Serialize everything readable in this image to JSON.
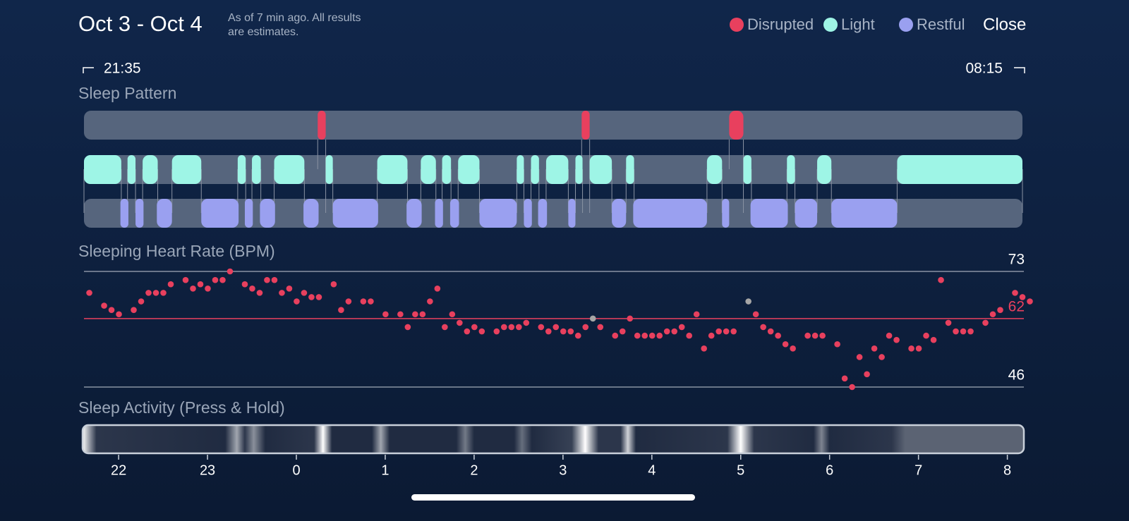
{
  "header": {
    "title": "Oct 3 - Oct 4",
    "note_line1": "As of 7 min ago. All results",
    "note_line2": "are estimates.",
    "close": "Close"
  },
  "legend": [
    {
      "name": "Disrupted",
      "color": "#e8405e"
    },
    {
      "name": "Light",
      "color": "#9ef5e6"
    },
    {
      "name": "Restful",
      "color": "#9aa0f0"
    }
  ],
  "start_time": "21:35",
  "end_time": "08:15",
  "xlim": [
    21.61,
    32.17
  ],
  "xticks": [
    22,
    23,
    {
      "value": 24,
      "label": "0"
    },
    {
      "value": 25,
      "label": "1"
    },
    {
      "value": 26,
      "label": "2"
    },
    {
      "value": 27,
      "label": "3"
    },
    {
      "value": 28,
      "label": "4"
    },
    {
      "value": 29,
      "label": "5"
    },
    {
      "value": 30,
      "label": "6"
    },
    {
      "value": 31,
      "label": "7"
    },
    {
      "value": 32,
      "label": "8"
    }
  ],
  "sleep_pattern": {
    "title": "Sleep Pattern",
    "rows": [
      {
        "name": "Disrupted",
        "segments": [
          [
            24.24,
            24.33
          ],
          [
            27.21,
            27.3
          ],
          [
            28.87,
            29.03
          ]
        ]
      },
      {
        "name": "Light",
        "segments": [
          [
            21.61,
            22.03
          ],
          [
            22.1,
            22.19
          ],
          [
            22.27,
            22.44
          ],
          [
            22.6,
            22.93
          ],
          [
            23.34,
            23.43
          ],
          [
            23.5,
            23.6
          ],
          [
            23.75,
            24.09
          ],
          [
            24.33,
            24.41
          ],
          [
            24.91,
            25.25
          ],
          [
            25.4,
            25.57
          ],
          [
            25.64,
            25.74
          ],
          [
            25.82,
            26.06
          ],
          [
            26.48,
            26.56
          ],
          [
            26.64,
            26.73
          ],
          [
            26.81,
            27.06
          ],
          [
            27.14,
            27.22
          ],
          [
            27.3,
            27.55
          ],
          [
            27.71,
            27.8
          ],
          [
            28.62,
            28.79
          ],
          [
            29.03,
            29.12
          ],
          [
            29.52,
            29.61
          ],
          [
            29.86,
            30.02
          ],
          [
            30.76,
            32.17
          ]
        ]
      },
      {
        "name": "Restful",
        "segments": [
          [
            22.02,
            22.11
          ],
          [
            22.19,
            22.28
          ],
          [
            22.43,
            22.6
          ],
          [
            22.93,
            23.35
          ],
          [
            23.42,
            23.51
          ],
          [
            23.59,
            23.76
          ],
          [
            24.08,
            24.25
          ],
          [
            24.41,
            24.92
          ],
          [
            25.24,
            25.41
          ],
          [
            25.56,
            25.65
          ],
          [
            25.73,
            25.83
          ],
          [
            26.06,
            26.48
          ],
          [
            26.56,
            26.65
          ],
          [
            26.72,
            26.82
          ],
          [
            27.06,
            27.14
          ],
          [
            27.55,
            27.71
          ],
          [
            27.79,
            28.62
          ],
          [
            28.79,
            28.87
          ],
          [
            29.11,
            29.53
          ],
          [
            29.61,
            29.86
          ],
          [
            30.02,
            30.76
          ]
        ]
      }
    ]
  },
  "heart_rate": {
    "title": "Sleeping Heart Rate (BPM)",
    "type": "scatter",
    "color": "#e8405e",
    "x_start": 21.67,
    "interval_min": 5,
    "ylim": [
      46,
      73
    ],
    "yticks": [
      46,
      73
    ],
    "average": 62,
    "average_color": "#e8405e",
    "marked_points": {
      "indices": [
        68,
        89
      ],
      "color": "#a6a6a6"
    },
    "values": [
      68,
      null,
      65,
      64,
      63,
      null,
      64,
      66,
      68,
      68,
      68,
      70,
      null,
      71,
      69,
      70,
      69,
      71,
      71,
      73,
      null,
      70,
      69,
      68,
      71,
      71,
      68,
      69,
      66,
      68,
      67,
      67,
      null,
      70,
      64,
      66,
      null,
      66,
      66,
      null,
      63,
      null,
      63,
      60,
      63,
      63,
      66,
      69,
      60,
      63,
      61,
      59,
      60,
      59,
      null,
      59,
      60,
      60,
      60,
      61,
      null,
      60,
      59,
      60,
      59,
      59,
      58,
      60,
      62,
      60,
      null,
      58,
      59,
      62,
      58,
      58,
      58,
      58,
      59,
      59,
      60,
      58,
      63,
      55,
      58,
      59,
      59,
      59,
      null,
      66,
      63,
      60,
      59,
      58,
      56,
      55,
      null,
      58,
      58,
      58,
      null,
      56,
      48,
      46,
      53,
      49,
      55,
      53,
      58,
      57,
      null,
      55,
      55,
      58,
      57,
      71,
      61,
      59,
      59,
      59,
      null,
      61,
      63,
      64,
      null,
      68,
      67,
      66
    ]
  },
  "activity": {
    "title": "Sleep Activity (Press & Hold)",
    "stops": [
      {
        "x": 21.61,
        "level": 0.9
      },
      {
        "x": 21.75,
        "level": 0.1
      },
      {
        "x": 23.2,
        "level": 0.05
      },
      {
        "x": 23.33,
        "level": 0.6
      },
      {
        "x": 23.42,
        "level": 0.1
      },
      {
        "x": 23.52,
        "level": 0.5
      },
      {
        "x": 23.65,
        "level": 0.05
      },
      {
        "x": 24.2,
        "level": 0.1
      },
      {
        "x": 24.3,
        "level": 1
      },
      {
        "x": 24.4,
        "level": 0.05
      },
      {
        "x": 24.85,
        "level": 0.05
      },
      {
        "x": 24.95,
        "level": 0.6
      },
      {
        "x": 25.05,
        "level": 0.05
      },
      {
        "x": 25.8,
        "level": 0.05
      },
      {
        "x": 25.9,
        "level": 0.4
      },
      {
        "x": 26.0,
        "level": 0.05
      },
      {
        "x": 26.45,
        "level": 0.05
      },
      {
        "x": 26.54,
        "level": 0.35
      },
      {
        "x": 26.65,
        "level": 0.05
      },
      {
        "x": 27.1,
        "level": 0.15
      },
      {
        "x": 27.25,
        "level": 1
      },
      {
        "x": 27.4,
        "level": 0.1
      },
      {
        "x": 27.65,
        "level": 0.1
      },
      {
        "x": 27.73,
        "level": 0.8
      },
      {
        "x": 27.82,
        "level": 0.05
      },
      {
        "x": 28.85,
        "level": 0.1
      },
      {
        "x": 29.0,
        "level": 1
      },
      {
        "x": 29.15,
        "level": 0.1
      },
      {
        "x": 29.82,
        "level": 0.05
      },
      {
        "x": 29.91,
        "level": 0.45
      },
      {
        "x": 30.0,
        "level": 0.05
      },
      {
        "x": 30.7,
        "level": 0.1
      },
      {
        "x": 30.85,
        "level": 0.3
      },
      {
        "x": 32.17,
        "level": 0.3
      }
    ]
  }
}
